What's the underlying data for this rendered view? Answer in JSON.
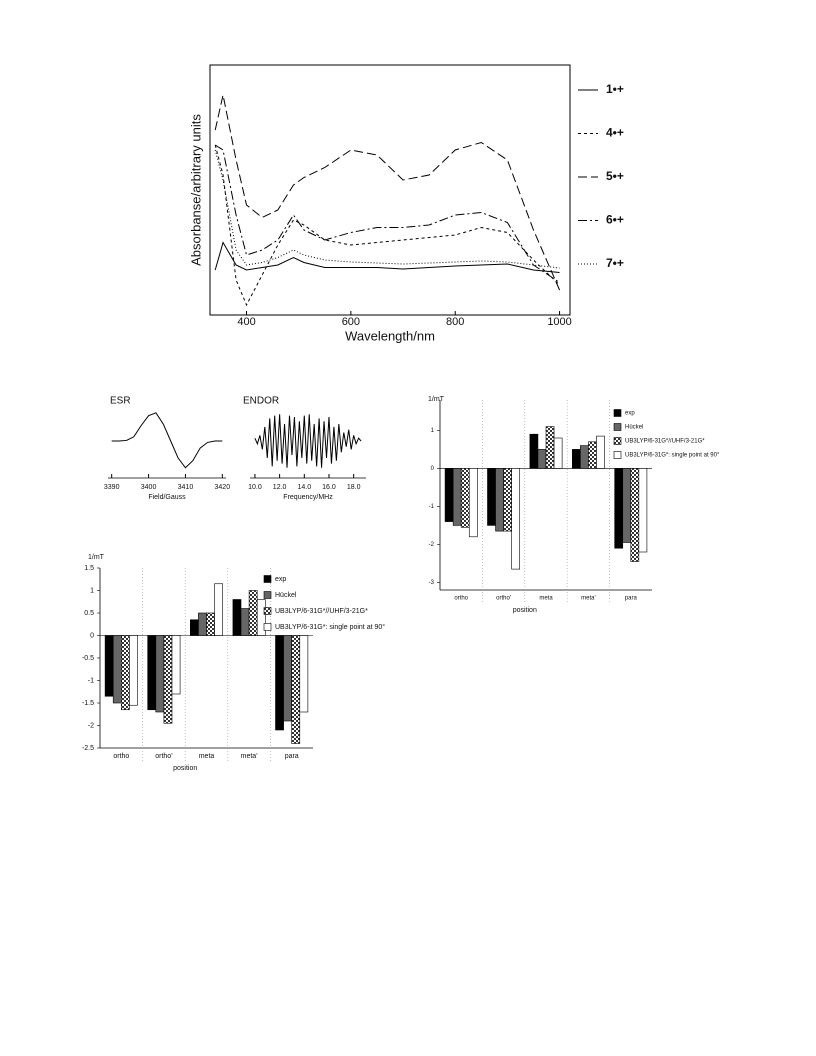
{
  "chart_data": [
    {
      "type": "line",
      "x_label": "Wavelength/nm",
      "y_label": "Absorbanse/arbitrary units",
      "frame": true,
      "legend": "right",
      "x": [
        340,
        355,
        380,
        400,
        430,
        460,
        490,
        510,
        550,
        600,
        650,
        700,
        750,
        800,
        850,
        900,
        950,
        1000
      ],
      "xlim": [
        330,
        1020
      ],
      "xticks": [
        400,
        600,
        800,
        1000
      ],
      "ylim": [
        0,
        100
      ],
      "series": [
        {
          "name": "1•+",
          "color": "#000",
          "dash": "solid",
          "values": [
            18,
            29,
            20,
            18,
            19,
            20,
            23,
            21,
            19,
            19,
            19,
            18.4,
            19,
            19.6,
            20,
            20.4,
            18,
            17
          ]
        },
        {
          "name": "4•+",
          "color": "#000",
          "dash": "dashed",
          "values": [
            68,
            56,
            14,
            4,
            16,
            28,
            38,
            36,
            30,
            28,
            29,
            30,
            31,
            32,
            35,
            33,
            22,
            12
          ]
        },
        {
          "name": "5•+",
          "color": "#000",
          "dash": "long-dashed",
          "values": [
            74,
            88,
            62,
            44,
            39,
            42,
            52,
            55,
            59,
            66,
            64,
            54,
            56,
            66,
            69,
            62,
            34,
            10
          ]
        },
        {
          "name": "6•+",
          "color": "#000",
          "dash": "dash-dot",
          "values": [
            68,
            66,
            40,
            24,
            26,
            30,
            40,
            34,
            30,
            33,
            35,
            35,
            36,
            40,
            41,
            37,
            20,
            13
          ]
        },
        {
          "name": "7•+",
          "color": "#000",
          "dash": "dotted",
          "values": [
            66,
            54,
            26,
            20,
            21,
            23,
            26,
            24,
            22,
            21.2,
            20.8,
            20.4,
            20.8,
            21.2,
            21.6,
            21.2,
            20,
            18.8
          ]
        }
      ]
    },
    {
      "type": "line",
      "title": "ESR",
      "x_label": "Field/Gauss",
      "color": "#000",
      "x": [
        3390,
        3392,
        3394,
        3396,
        3398,
        3400,
        3402,
        3404,
        3406,
        3408,
        3410,
        3412,
        3414,
        3416,
        3418,
        3420
      ],
      "values": [
        0,
        0,
        0.02,
        0.15,
        0.55,
        0.9,
        1,
        0.6,
        0,
        -0.6,
        -0.95,
        -0.7,
        -0.25,
        -0.05,
        0,
        0
      ],
      "xlim": [
        3389,
        3421
      ],
      "xticks": [
        3390,
        3400,
        3410,
        3420
      ],
      "ylim": [
        -1.1,
        1.1
      ]
    },
    {
      "type": "line",
      "title": "ENDOR",
      "x_label": "Frequency/MHz",
      "color": "#000",
      "x": [
        10,
        10.2,
        10.4,
        10.6,
        10.8,
        11,
        11.2,
        11.4,
        11.6,
        11.8,
        12,
        12.2,
        12.4,
        12.6,
        12.8,
        13,
        13.2,
        13.4,
        13.6,
        13.8,
        14,
        14.2,
        14.4,
        14.6,
        14.8,
        15,
        15.2,
        15.4,
        15.6,
        15.8,
        16,
        16.2,
        16.4,
        16.6,
        16.8,
        17,
        17.2,
        17.4,
        17.6,
        17.8,
        18,
        18.2,
        18.4,
        18.6
      ],
      "values": [
        0.1,
        -0.1,
        0.2,
        -0.3,
        0.5,
        -0.6,
        0.8,
        -0.9,
        0.9,
        -0.7,
        0.95,
        -0.8,
        0.6,
        -0.95,
        0.9,
        -0.5,
        0.85,
        -0.9,
        0.7,
        -0.6,
        0.9,
        -0.8,
        0.95,
        -0.7,
        0.6,
        -0.9,
        0.8,
        -0.95,
        0.7,
        -0.6,
        0.85,
        -0.8,
        0.5,
        -0.7,
        0.6,
        -0.4,
        0.3,
        -0.2,
        0.4,
        -0.3,
        0.2,
        -0.1,
        0.1,
        0
      ],
      "xlim": [
        9.6,
        19
      ],
      "xticks": [
        {
          "value": 10,
          "label": "10.0"
        },
        {
          "value": 12,
          "label": "12.0"
        },
        {
          "value": 14,
          "label": "14.0"
        },
        {
          "value": 16,
          "label": "16.0"
        },
        {
          "value": 18,
          "label": "18.0"
        }
      ],
      "ylim": [
        -1.1,
        1.1
      ]
    },
    {
      "type": "bar",
      "y_label": "1/mT",
      "x_label": "position",
      "categories": [
        "ortho",
        "ortho'",
        "meta",
        "meta'",
        "para"
      ],
      "ylim": [
        -3.2,
        1.8
      ],
      "yticks": [
        1,
        0,
        -1,
        -2,
        -3
      ],
      "series": [
        {
          "name": "exp",
          "color": "#000",
          "values": [
            -1.4,
            -1.5,
            0.9,
            0.5,
            -2.1
          ]
        },
        {
          "name": "Hückel",
          "color": "#666",
          "values": [
            -1.5,
            -1.65,
            0.5,
            0.6,
            -1.95
          ]
        },
        {
          "name": "UB3LYP/6-31G*//UHF/3-21G*",
          "color": "#888",
          "hatch": true,
          "values": [
            -1.55,
            -1.65,
            1.1,
            0.7,
            -2.45
          ]
        },
        {
          "name": "UB3LYP/6-31G*: single point at 90°",
          "color": "#fff",
          "values": [
            -1.8,
            -2.65,
            0.8,
            0.85,
            -2.2
          ]
        }
      ]
    },
    {
      "type": "bar",
      "y_label": "1/mT",
      "x_label": "position",
      "categories": [
        "ortho",
        "ortho'",
        "meta",
        "meta'",
        "para"
      ],
      "ylim": [
        -2.5,
        1.5
      ],
      "yticks": [
        1.5,
        1,
        0.5,
        0,
        -0.5,
        -1,
        -1.5,
        -2,
        -2.5
      ],
      "series": [
        {
          "name": "exp",
          "color": "#000",
          "values": [
            -1.35,
            -1.65,
            0.35,
            0.8,
            -2.1
          ]
        },
        {
          "name": "Hückel",
          "color": "#666",
          "values": [
            -1.5,
            -1.7,
            0.5,
            0.6,
            -1.9
          ]
        },
        {
          "name": "UB3LYP/6-31G*//UHF/3-21G*",
          "color": "#888",
          "hatch": true,
          "values": [
            -1.65,
            -1.95,
            0.5,
            1,
            -2.4
          ]
        },
        {
          "name": "UB3LYP/6-31G*: single point at 90°",
          "color": "#fff",
          "values": [
            -1.55,
            -1.3,
            1.15,
            0.8,
            -1.7
          ]
        }
      ]
    }
  ]
}
